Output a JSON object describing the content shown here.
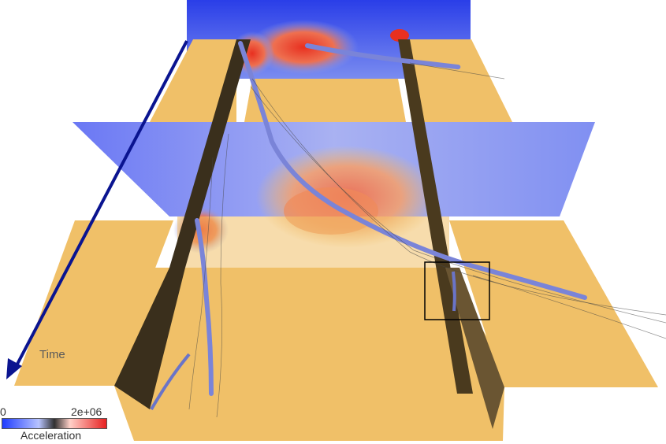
{
  "scene": {
    "time_label": "Time",
    "colors": {
      "floor": "#f0c068",
      "wall_shadow": "#3a2f1c",
      "wall_light": "#6a5532",
      "plane_blue": "#4a5cf0",
      "plane_back": "#2a3ee8",
      "hot": "#e83020",
      "tube": "#7a84d8",
      "arrow": "#0a1490"
    },
    "icons": [
      "time-arrow-icon",
      "focus-box-icon"
    ]
  },
  "legend": {
    "min_label": "0",
    "max_label": "2e+06",
    "title": "Acceleration",
    "colors": [
      "#1f3cff",
      "#ffffff",
      "#222222",
      "#ffffff",
      "#e82020"
    ]
  }
}
